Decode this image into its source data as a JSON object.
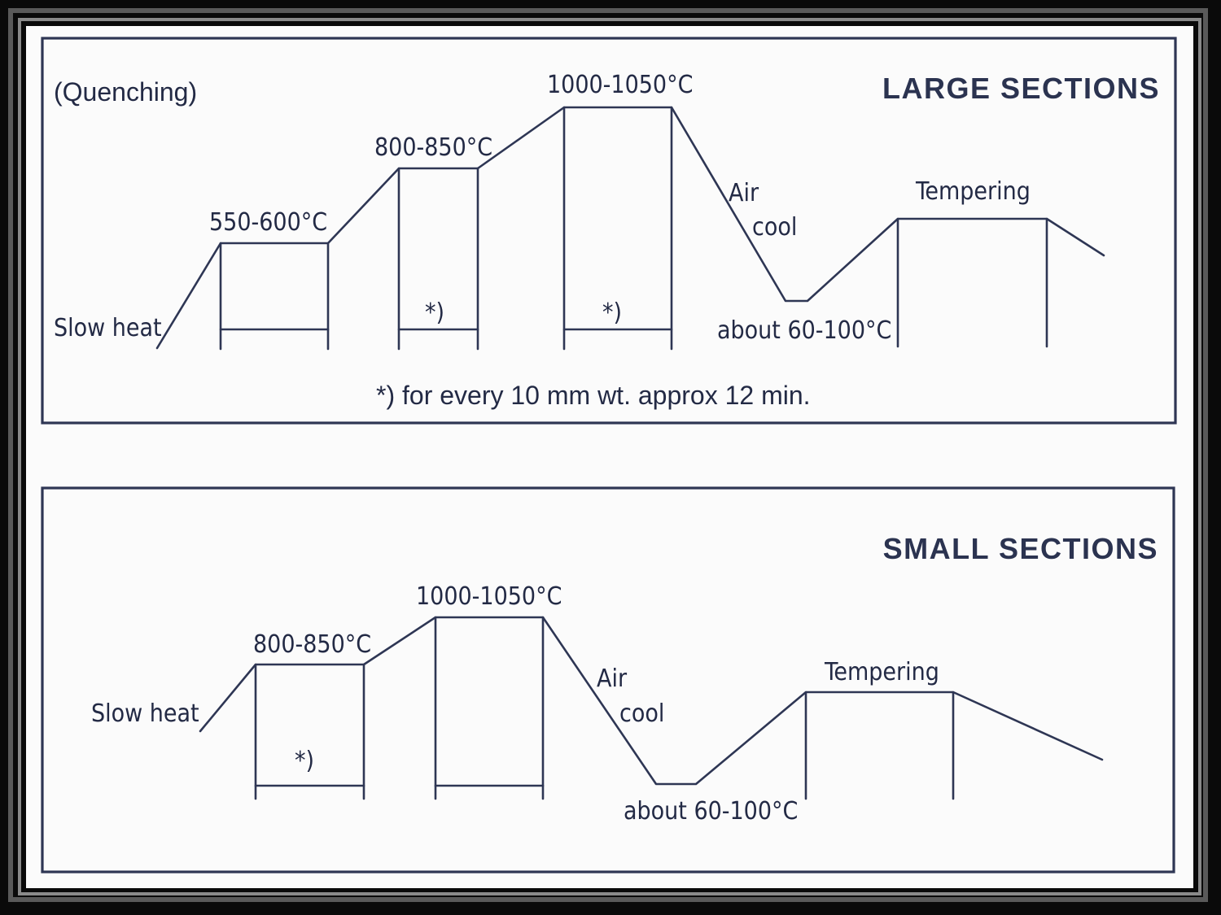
{
  "large": {
    "title": "LARGE SECTIONS",
    "process": "(Quenching)",
    "slow_heat": "Slow heat",
    "temp1": "550-600°C",
    "temp2": "800-850°C",
    "temp3": "1000-1050°C",
    "hold_mark_a": "*)",
    "hold_mark_b": "*)",
    "air": "Air",
    "cool": "cool",
    "about": "about 60-100°C",
    "tempering": "Tempering",
    "footnote": "*) for every 10 mm wt. approx 12 min."
  },
  "small": {
    "title": "SMALL SECTIONS",
    "slow_heat": "Slow heat",
    "temp2": "800-850°C",
    "temp3": "1000-1050°C",
    "hold_mark": "*)",
    "air": "Air",
    "cool": "cool",
    "about": "about 60-100°C",
    "tempering": "Tempering"
  },
  "colors": {
    "ink": "#2e3654",
    "paper": "#fbfbfb"
  }
}
